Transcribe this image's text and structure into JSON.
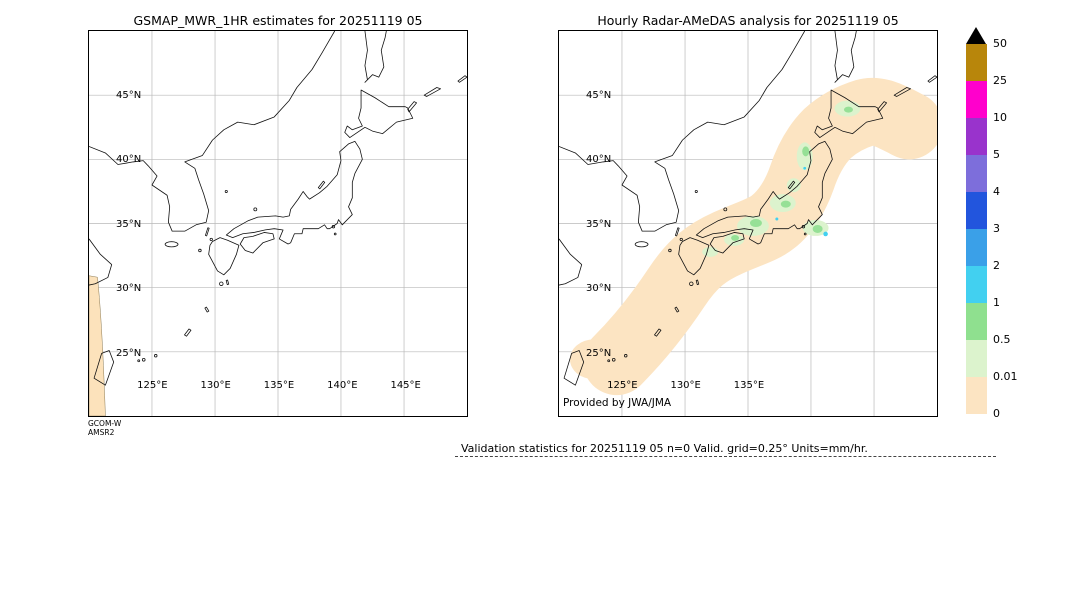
{
  "chart_data": {
    "type": "heatmap",
    "figure": "GSMaP microwave radiometer estimates vs Radar-AMeDAS analysis hourly precipitation validation maps over Japan",
    "panels": [
      {
        "title": "GSMAP_MWR_1HR estimates for 20251119 05",
        "lon_range_deg_e": [
          120,
          150
        ],
        "lat_range_deg_n": [
          20,
          50
        ],
        "lat_ticks": [
          {
            "deg": 45,
            "label": "45°N"
          },
          {
            "deg": 40,
            "label": "40°N"
          },
          {
            "deg": 35,
            "label": "35°N"
          },
          {
            "deg": 30,
            "label": "30°N"
          },
          {
            "deg": 25,
            "label": "25°N"
          }
        ],
        "lon_ticks": [
          {
            "deg": 125,
            "label": "125°E"
          },
          {
            "deg": 130,
            "label": "130°E"
          },
          {
            "deg": 135,
            "label": "135°E"
          },
          {
            "deg": 140,
            "label": "140°E"
          },
          {
            "deg": 145,
            "label": "145°E"
          }
        ],
        "sensor_note": [
          "GCOM-W",
          "AMSR2"
        ],
        "coverage": "No precipitation retrievals inside the domain (n=0); only a narrow AMSR2 swath edge with 0-0.01 mm/hr values along the western boundary near 120-121°E from about 20°N to 31°N."
      },
      {
        "title": "Hourly Radar-AMeDAS analysis for 20251119 05",
        "lon_range_deg_e": [
          120,
          150
        ],
        "lat_range_deg_n": [
          20,
          50
        ],
        "lat_ticks": [
          {
            "deg": 45,
            "label": "45°N"
          },
          {
            "deg": 40,
            "label": "40°N"
          },
          {
            "deg": 35,
            "label": "35°N"
          },
          {
            "deg": 30,
            "label": "30°N"
          },
          {
            "deg": 25,
            "label": "25°N"
          }
        ],
        "lon_ticks": [
          {
            "deg": 125,
            "label": "125°E"
          },
          {
            "deg": 130,
            "label": "130°E"
          },
          {
            "deg": 135,
            "label": "135°E"
          }
        ],
        "credit": "Provided by JWA/JMA",
        "coverage": "Widespread light precipitation 0.01-0.5 mm/hr (pale orange band) along the Japanese archipelago from Okinawa through Kyushu, Shikoku and Honshu to Hokkaido, with embedded 0.5-2 mm/hr cells (green) over Shikoku, central Honshu, Tohoku and southern Hokkaido, and isolated 2-3 mm/hr spots (cyan) south of central Honshu."
      }
    ],
    "colorbar": {
      "units": "mm/hr",
      "tick_labels_top_to_bottom": [
        "50",
        "25",
        "10",
        "5",
        "4",
        "3",
        "2",
        "1",
        "0.5",
        "0.01",
        "0"
      ],
      "levels_ascending": [
        0,
        0.01,
        0.5,
        1,
        2,
        3,
        4,
        5,
        10,
        25,
        50
      ],
      "colors_top_to_bottom": [
        "#b8860b",
        "#ff00cc",
        "#9933cc",
        "#7d6edb",
        "#2255dd",
        "#3aa0e8",
        "#42d0f0",
        "#8fe08f",
        "#dcf3cd",
        "#fce4c2"
      ],
      "overflow_color_above_50": "#000000"
    },
    "validation": {
      "n": 0,
      "grid": "0.25°",
      "units": "mm/hr",
      "datetime": "20251119 05"
    }
  },
  "footer": {
    "stats_line": "Validation statistics for 20251119 05  n=0 Valid. grid=0.25° Units=mm/hr."
  }
}
